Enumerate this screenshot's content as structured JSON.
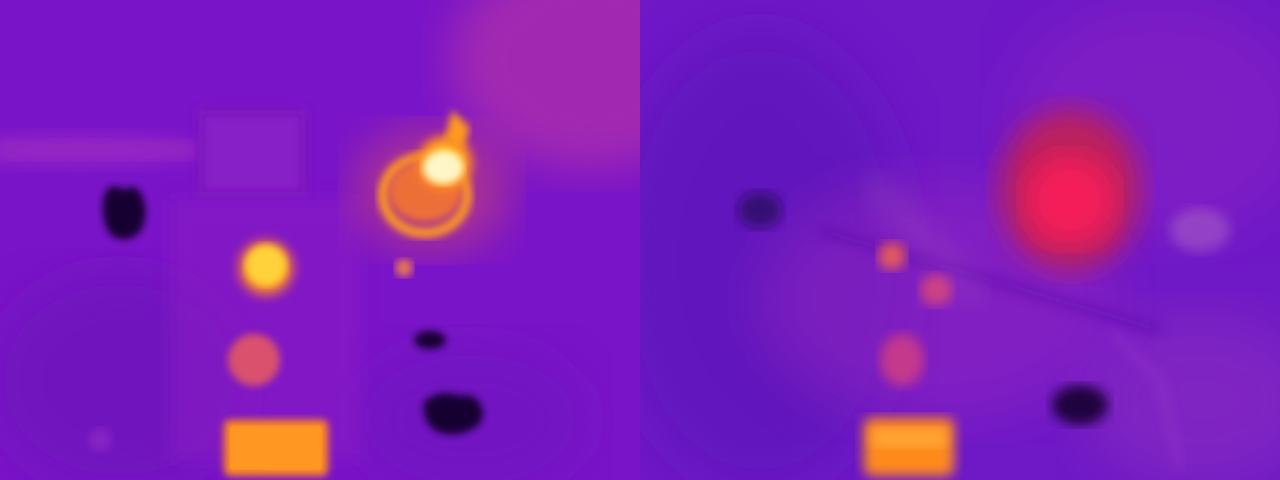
{
  "image": {
    "description_kind": "side-by-side thermal image comparison",
    "palette": {
      "background": "#7a14c8",
      "deep_violet": "#4a0d9a",
      "purple": "#8f1fc8",
      "magenta": "#c23aa0",
      "red": "#ff1e5a",
      "orange": "#ff8a1c",
      "yellow": "#ffd23a",
      "white_hot": "#fff6c8",
      "cold": "#120430"
    }
  }
}
